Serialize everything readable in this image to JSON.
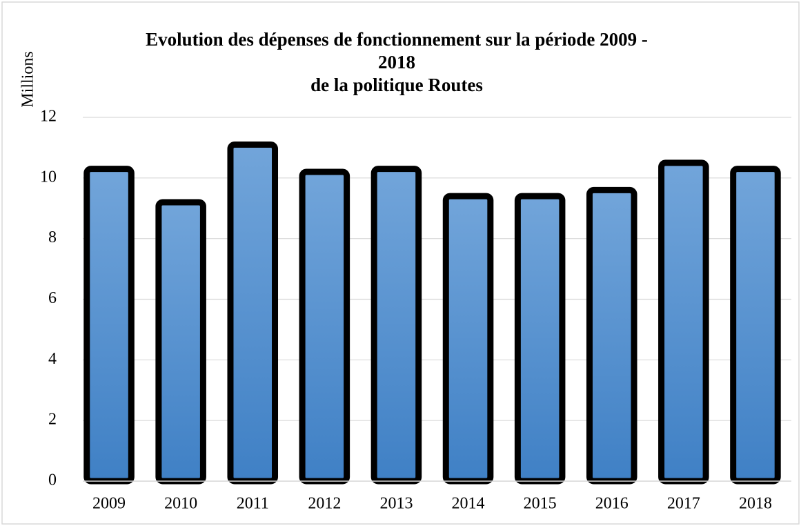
{
  "chart_data": {
    "type": "bar",
    "title": [
      "Evolution des dépenses de fonctionnement sur la période 2009 -",
      "2018",
      "de la politique Routes"
    ],
    "y_label": "Millions",
    "categories": [
      "2009",
      "2010",
      "2011",
      "2012",
      "2013",
      "2014",
      "2015",
      "2016",
      "2017",
      "2018"
    ],
    "values": [
      10.3,
      9.2,
      11.1,
      10.2,
      10.3,
      9.4,
      9.4,
      9.6,
      10.5,
      10.3
    ],
    "color": "#5592d2",
    "ylim": [
      0,
      12
    ],
    "yticks": [
      0,
      2,
      4,
      6,
      8,
      10,
      12
    ],
    "grid": true
  }
}
